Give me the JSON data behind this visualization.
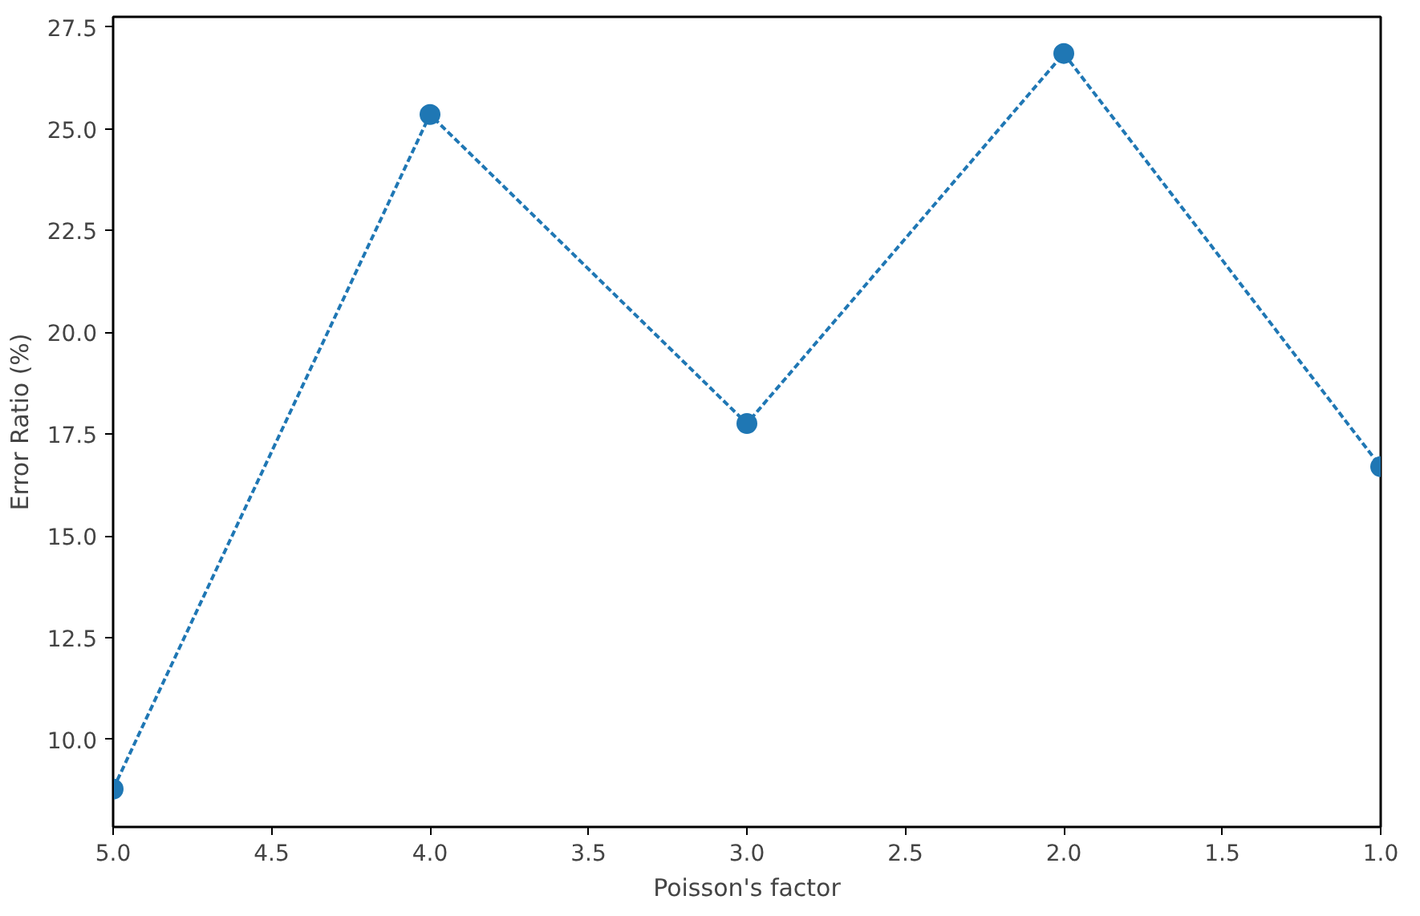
{
  "chart_data": {
    "type": "line",
    "xlabel": "Poisson's factor",
    "ylabel": "Error Ratio (%)",
    "x": [
      5,
      4,
      3,
      2,
      1
    ],
    "series": [
      {
        "color": "#1f77b4",
        "values": [
          8.78,
          25.35,
          17.76,
          26.85,
          16.7
        ]
      }
    ],
    "xlim": [
      5,
      1
    ],
    "ylim": [
      7.85,
      27.75
    ],
    "xticks": [
      {
        "value": 5,
        "label": "5.0"
      },
      {
        "value": 4.5,
        "label": "4.5"
      },
      {
        "value": 4,
        "label": "4.0"
      },
      {
        "value": 3.5,
        "label": "3.5"
      },
      {
        "value": 3,
        "label": "3.0"
      },
      {
        "value": 2.5,
        "label": "2.5"
      },
      {
        "value": 2,
        "label": "2.0"
      },
      {
        "value": 1.5,
        "label": "1.5"
      },
      {
        "value": 1,
        "label": "1.0"
      }
    ],
    "yticks": [
      {
        "value": 10,
        "label": "10.0"
      },
      12.5,
      {
        "value": 15,
        "label": "15.0"
      },
      17.5,
      {
        "value": 20,
        "label": "20.0"
      },
      22.5,
      {
        "value": 25,
        "label": "25.0"
      },
      27.5
    ],
    "grid": false,
    "marker": "circle",
    "line_style": "dashed"
  }
}
